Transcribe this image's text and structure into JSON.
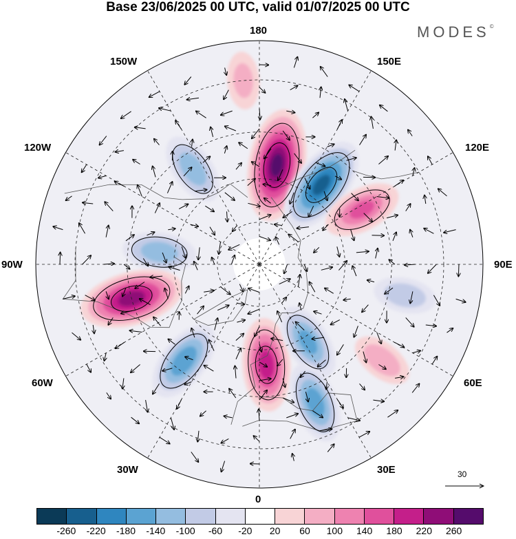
{
  "title": "Base 23/06/2025 00 UTC, valid 01/07/2025 00 UTC",
  "brand": "MODES",
  "brand_mark": "©",
  "lon_labels": {
    "l180": "180",
    "l150w": "150W",
    "l150e": "150E",
    "l120w": "120W",
    "l120e": "120E",
    "l90w": "90W",
    "l90e": "90E",
    "l60w": "60W",
    "l60e": "60E",
    "l30w": "30W",
    "l30e": "30E",
    "l0": "0"
  },
  "reference_vector": "30",
  "colorbar": {
    "colors": [
      "#0b3a57",
      "#175f8e",
      "#2f86bf",
      "#5ba3d2",
      "#94bde0",
      "#c2cbe6",
      "#e4e4f1",
      "#ffffff",
      "#f8d4d6",
      "#f4aec4",
      "#ee82b0",
      "#e0509c",
      "#c41f8a",
      "#8f0d77",
      "#550c6c"
    ],
    "ticks": [
      "-260",
      "-220",
      "-180",
      "-140",
      "-100",
      "-60",
      "-20",
      "20",
      "60",
      "100",
      "140",
      "180",
      "220",
      "260"
    ]
  },
  "anomaly_centers": [
    {
      "lon": 170,
      "lat": 55,
      "value": 260
    },
    {
      "lon": 142,
      "lat": 55,
      "value": -220
    },
    {
      "lon": 118,
      "lat": 50,
      "value": 140
    },
    {
      "lon": -145,
      "lat": 50,
      "value": -120
    },
    {
      "lon": -97,
      "lat": 55,
      "value": -120
    },
    {
      "lon": -75,
      "lat": 45,
      "value": 230
    },
    {
      "lon": -38,
      "lat": 48,
      "value": -160
    },
    {
      "lon": 4,
      "lat": 55,
      "value": 190
    },
    {
      "lon": 32,
      "lat": 58,
      "value": -140
    },
    {
      "lon": 22,
      "lat": 40,
      "value": -150
    },
    {
      "lon": 78,
      "lat": 40,
      "value": -80
    },
    {
      "lon": 52,
      "lat": 38,
      "value": 80
    },
    {
      "lon": -175,
      "lat": 30,
      "value": 60
    }
  ]
}
